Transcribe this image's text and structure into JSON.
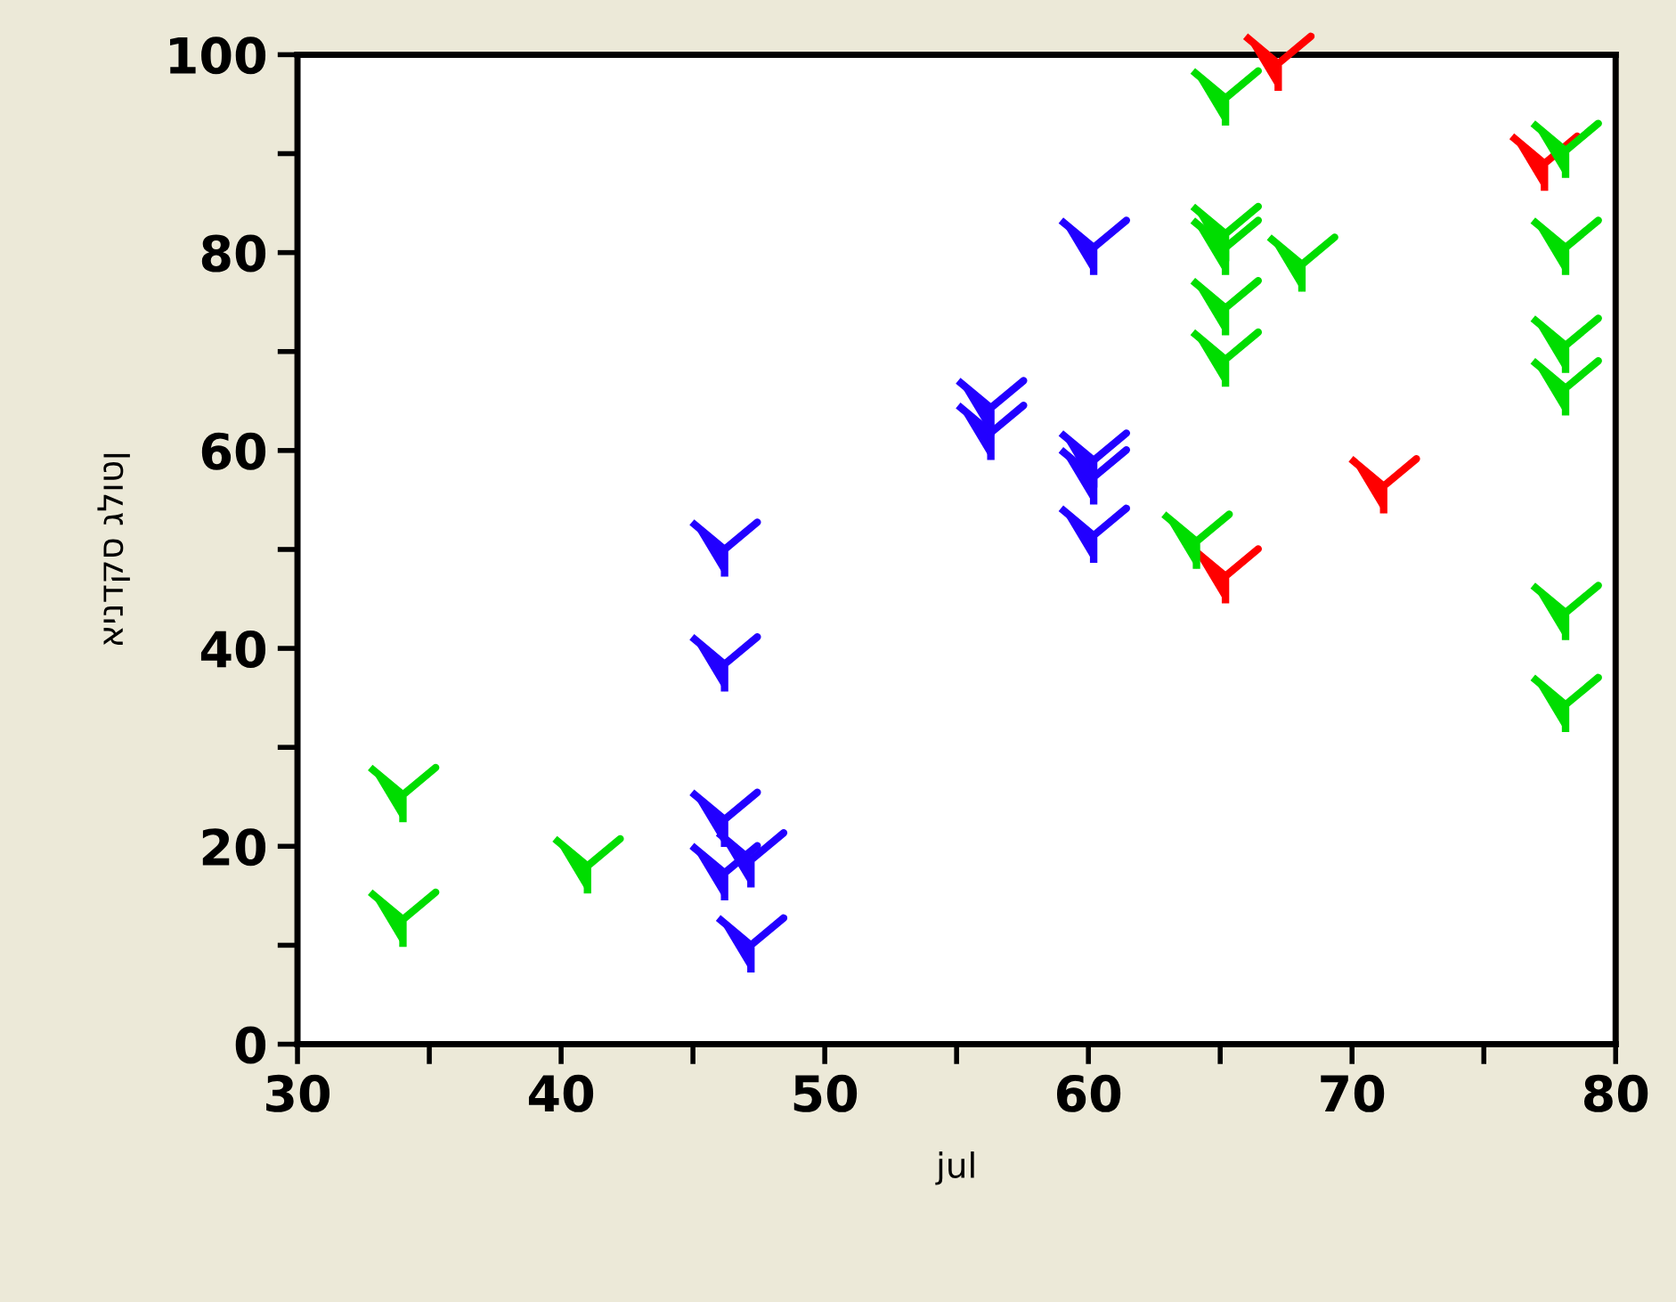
{
  "chart_data": {
    "type": "scatter",
    "xlabel": "jul",
    "ylabel": "אינדקס גלוטן",
    "xlim": [
      30,
      80
    ],
    "xticks": [
      30,
      {
        "value": 35,
        "label": null
      },
      40,
      {
        "value": 45,
        "label": null
      },
      50,
      {
        "value": 55,
        "label": null
      },
      60,
      {
        "value": 65,
        "label": null
      },
      70,
      {
        "value": 75,
        "label": null
      },
      80
    ],
    "ylim": [
      0,
      100
    ],
    "yticks": [
      0,
      {
        "value": 10,
        "label": null
      },
      20,
      {
        "value": 30,
        "label": null
      },
      40,
      {
        "value": 50,
        "label": null
      },
      60,
      {
        "value": 70,
        "label": null
      },
      80,
      {
        "value": 90,
        "label": null
      },
      100
    ],
    "grid": false,
    "legend": false,
    "series": [
      {
        "color": "#2200ff",
        "x": [
          46.2,
          46.2,
          46.2,
          46.2,
          47.2,
          47.2,
          56.3,
          56.3,
          60.2,
          60.2,
          60.2,
          60.2
        ],
        "values": [
          50,
          38.4,
          22.7,
          17.3,
          18.6,
          10,
          64.3,
          61.8,
          80.5,
          59,
          57.3,
          51.4
        ]
      },
      {
        "color": "#00dd00",
        "x": [
          34,
          34,
          41,
          65.2,
          65.2,
          65.2,
          65.2,
          65.2,
          68.1,
          64.1,
          78.1,
          78.1,
          78.1,
          78.1,
          78.1,
          78.1
        ],
        "values": [
          25.2,
          12.6,
          18,
          95.6,
          81.9,
          80.5,
          74.4,
          69.2,
          78.8,
          50.8,
          90.3,
          80.5,
          70.6,
          66.3,
          43.6,
          34.3
        ]
      },
      {
        "color": "#ff0000",
        "x": [
          65.2,
          67.2,
          71.2,
          77.3
        ],
        "values": [
          47.3,
          99.1,
          56.4,
          89
        ]
      }
    ]
  }
}
